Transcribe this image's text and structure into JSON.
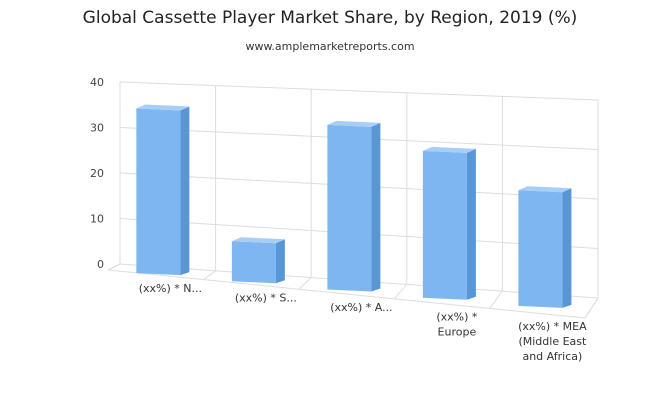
{
  "chart_data": {
    "type": "bar",
    "title": "Global Cassette Player Market Share, by Region, 2019 (%)",
    "subtitle": "www.amplemarketreports.com",
    "xlabel": "",
    "ylabel": "",
    "ylim": [
      0,
      40
    ],
    "yticks": [
      0,
      10,
      20,
      30,
      40
    ],
    "categories": [
      "(xx%) * N...",
      "(xx%) * S...",
      "(xx%) * A...",
      "(xx%) * Europe",
      "(xx%) * MEA (Middle East and Africa)"
    ],
    "category_lines": [
      [
        "(xx%) * N..."
      ],
      [
        "(xx%) * S..."
      ],
      [
        "(xx%) * A..."
      ],
      [
        "(xx%) *",
        "Europe"
      ],
      [
        "(xx%) * MEA",
        "(Middle East",
        "and Africa)"
      ]
    ],
    "values": [
      37,
      9,
      37,
      33,
      26
    ],
    "grid": true,
    "legend": "none",
    "colors": {
      "bar_front": "#7db6f0",
      "bar_side": "#5896d6",
      "bar_top": "#a6cef6",
      "grid": "#dddddd"
    }
  }
}
